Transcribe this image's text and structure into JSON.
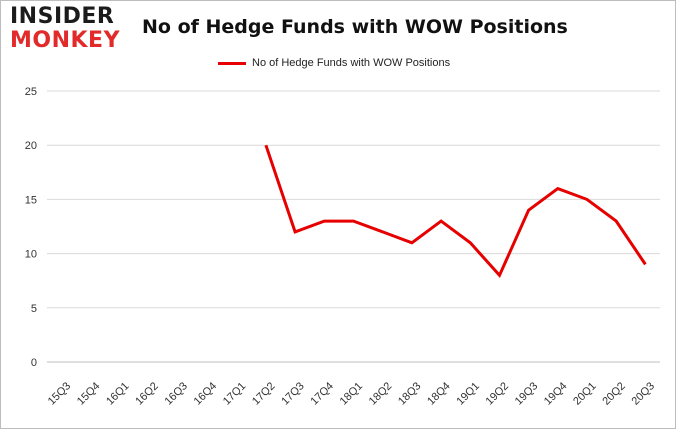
{
  "logo": {
    "line1": "INSIDER",
    "line2": "MONKEY"
  },
  "chart_data": {
    "type": "line",
    "title": "No of Hedge Funds with WOW Positions",
    "xlabel": "",
    "ylabel": "",
    "categories": [
      "15Q3",
      "15Q4",
      "16Q1",
      "16Q2",
      "16Q3",
      "16Q4",
      "17Q1",
      "17Q2",
      "17Q3",
      "17Q4",
      "18Q1",
      "18Q2",
      "18Q3",
      "18Q4",
      "19Q1",
      "19Q2",
      "19Q3",
      "19Q4",
      "20Q1",
      "20Q2",
      "20Q3"
    ],
    "series": [
      {
        "name": "No of Hedge Funds with WOW Positions",
        "color": "#e60000",
        "values": [
          null,
          null,
          null,
          null,
          null,
          null,
          null,
          20,
          12,
          13,
          13,
          12,
          11,
          13,
          11,
          8,
          14,
          16,
          15,
          13,
          9
        ]
      }
    ],
    "ylim": [
      0,
      25
    ],
    "yticks": [
      0,
      5,
      10,
      15,
      20,
      25
    ],
    "grid": true,
    "legend_position": "top-center"
  }
}
